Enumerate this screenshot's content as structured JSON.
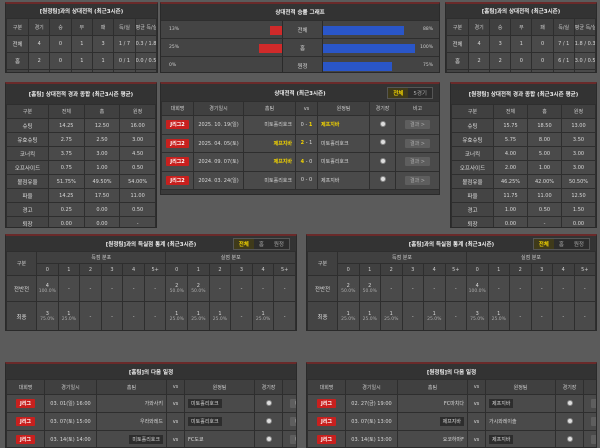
{
  "colors": {
    "accent": "#f1d300",
    "badge": "#c8201e",
    "lose_bar": "#d02a2a",
    "win_bar": "#2a56c8"
  },
  "h2h_away": {
    "title": "[원정팀]과의 상대전적 (최근3시즌)",
    "cols": [
      "구분",
      "경기",
      "승",
      "무",
      "패",
      "득/실",
      "평균 득/실"
    ],
    "rows": [
      [
        "전체",
        "4",
        "0",
        "1",
        "3",
        "1 / 7",
        "0.3 / 1.8"
      ],
      [
        "홈",
        "2",
        "0",
        "1",
        "1",
        "0 / 1",
        "0.0 / 0.5"
      ],
      [
        "원정",
        "2",
        "0",
        "0",
        "2",
        "1 / 6",
        "0.5 / 3.0"
      ]
    ]
  },
  "h2h_home": {
    "title": "[홈팀]과의 상대전적 (최근3시즌)",
    "cols": [
      "구분",
      "경기",
      "승",
      "무",
      "패",
      "득/실",
      "평균 득/실"
    ],
    "rows": [
      [
        "전체",
        "4",
        "3",
        "1",
        "0",
        "7 / 1",
        "1.8 / 0.3"
      ],
      [
        "홈",
        "2",
        "2",
        "0",
        "0",
        "6 / 1",
        "3.0 / 0.5"
      ],
      [
        "원정",
        "2",
        "1",
        "1",
        "0",
        "1 / 0",
        "0.5 / 0.0"
      ]
    ]
  },
  "graph": {
    "title": "상대전적 승률 그래프",
    "rows": [
      {
        "label": "전체",
        "left_pct": 13,
        "left_text": "13%",
        "right_pct": 88,
        "right_text": "88%"
      },
      {
        "label": "홈",
        "left_pct": 25,
        "left_text": "25%",
        "right_pct": 100,
        "right_text": "100%"
      },
      {
        "label": "원정",
        "left_pct": 0,
        "left_text": "0%",
        "right_pct": 75,
        "right_text": "75%"
      }
    ]
  },
  "stats_home": {
    "title": "[홈팀] 상대전적 경과 종합 (최근3시즌 평균)",
    "cols": [
      "구분",
      "전체",
      "홈",
      "원정"
    ],
    "rows": [
      [
        "슈팅",
        "14.25",
        "12.50",
        "16.00"
      ],
      [
        "유효슈팅",
        "2.75",
        "2.50",
        "3.00"
      ],
      [
        "코너킥",
        "3.75",
        "3.00",
        "4.50"
      ],
      [
        "오프사이드",
        "0.75",
        "1.00",
        "0.50"
      ],
      [
        "볼점유율",
        "51.75%",
        "49.50%",
        "54.00%"
      ],
      [
        "파울",
        "14.25",
        "17.50",
        "11.00"
      ],
      [
        "경고",
        "0.25",
        "0.00",
        "0.50"
      ],
      [
        "퇴장",
        "0.00",
        "0.00",
        "-"
      ]
    ]
  },
  "stats_away": {
    "title": "[원정팀] 상대전적 경과 종합 (최근3시즌 평균)",
    "cols": [
      "구분",
      "전체",
      "홈",
      "원정"
    ],
    "rows": [
      [
        "슈팅",
        "15.75",
        "18.50",
        "13.00"
      ],
      [
        "유효슈팅",
        "5.75",
        "8.00",
        "3.50"
      ],
      [
        "코너킥",
        "4.00",
        "5.00",
        "3.00"
      ],
      [
        "오프사이드",
        "2.00",
        "1.00",
        "3.00"
      ],
      [
        "볼점유율",
        "46.25%",
        "42.00%",
        "50.50%"
      ],
      [
        "파울",
        "11.75",
        "11.00",
        "12.50"
      ],
      [
        "경고",
        "1.00",
        "0.50",
        "1.50"
      ],
      [
        "퇴장",
        "0.00",
        "-",
        "0.00"
      ]
    ]
  },
  "h2h_matches": {
    "title": "상대전적 (최근3시즌)",
    "tabs": [
      "전체",
      "5경기"
    ],
    "cols": [
      "대회명",
      "경기일시",
      "홈팀",
      "vs",
      "원정팀",
      "경기장",
      "비고"
    ],
    "rows": [
      {
        "league": "J리그2",
        "date": "2025. 10. 19(일)",
        "home": "미토홀리호크",
        "hs": "0",
        "as": "1",
        "away": "제프지바",
        "win": "away",
        "btn": "결과 >"
      },
      {
        "league": "J리그2",
        "date": "2025. 04. 05(토)",
        "home": "제프지바",
        "hs": "2",
        "as": "1",
        "away": "미토홀리호크",
        "win": "home",
        "btn": "결과 >"
      },
      {
        "league": "J리그2",
        "date": "2024. 09. 07(토)",
        "home": "제프지바",
        "hs": "4",
        "as": "0",
        "away": "미토홀리호크",
        "win": "home",
        "btn": "결과 >"
      },
      {
        "league": "J리그2",
        "date": "2024. 03. 24(일)",
        "home": "미토홀리호크",
        "hs": "0",
        "as": "0",
        "away": "제프지바",
        "win": "none",
        "btn": "결과 >"
      }
    ]
  },
  "goals_away": {
    "title": "[원정팀]과의 득실점 통계 (최근3시즌)",
    "tabs": [
      "전체",
      "홈",
      "원정"
    ],
    "label_col": "구분",
    "group1": "득점 분포",
    "group2": "실점 분포",
    "buckets": [
      "0",
      "1",
      "2",
      "3",
      "4",
      "5+"
    ],
    "rows": [
      {
        "label": "전반전",
        "for": [
          [
            "4",
            "100.0%"
          ],
          null,
          null,
          null,
          null,
          null
        ],
        "against": [
          [
            "2",
            "50.0%"
          ],
          [
            "2",
            "50.0%"
          ],
          null,
          null,
          null,
          null
        ]
      },
      {
        "label": "최종",
        "for": [
          [
            "3",
            "75.0%"
          ],
          [
            "1",
            "25.0%"
          ],
          null,
          null,
          null,
          null
        ],
        "against": [
          [
            "1",
            "25.0%"
          ],
          [
            "1",
            "25.0%"
          ],
          [
            "1",
            "25.0%"
          ],
          null,
          [
            "1",
            "25.0%"
          ],
          null
        ]
      }
    ]
  },
  "goals_home": {
    "title": "[홈팀]과의 득실점 통계 (최근3시즌)",
    "tabs": [
      "전체",
      "홈",
      "원정"
    ],
    "label_col": "구분",
    "group1": "득점 분포",
    "group2": "실점 분포",
    "buckets": [
      "0",
      "1",
      "2",
      "3",
      "4",
      "5+"
    ],
    "rows": [
      {
        "label": "전반전",
        "for": [
          [
            "2",
            "50.0%"
          ],
          [
            "2",
            "50.0%"
          ],
          null,
          null,
          null,
          null
        ],
        "against": [
          [
            "4",
            "100.0%"
          ],
          null,
          null,
          null,
          null,
          null
        ]
      },
      {
        "label": "최종",
        "for": [
          [
            "1",
            "25.0%"
          ],
          [
            "1",
            "25.0%"
          ],
          [
            "1",
            "25.0%"
          ],
          null,
          [
            "1",
            "25.0%"
          ],
          null
        ],
        "against": [
          [
            "3",
            "75.0%"
          ],
          [
            "1",
            "25.0%"
          ],
          null,
          null,
          null,
          null
        ]
      }
    ]
  },
  "next_home": {
    "title": "[홈팀]의 다음 일정",
    "cols": [
      "대회명",
      "경기일시",
      "홈팀",
      "vs",
      "원정팀",
      "경기장",
      "비고"
    ],
    "rows": [
      {
        "league": "J리그",
        "date": "03. 01(일) 16:00",
        "home": "가와사키",
        "away": "미토홀리호크",
        "team": "away",
        "btn": "비교 >"
      },
      {
        "league": "J리그",
        "date": "03. 07(토) 15:00",
        "home": "우라와레드",
        "away": "미토홀리호크",
        "team": "away",
        "btn": "비교 >"
      },
      {
        "league": "J리그",
        "date": "03. 14(토) 14:00",
        "home": "미토홀리호크",
        "away": "FC도쿄",
        "team": "home",
        "btn": "비교 >"
      }
    ]
  },
  "next_away": {
    "title": "[원정팀]의 다음 일정",
    "cols": [
      "대회명",
      "경기일시",
      "홈팀",
      "vs",
      "원정팀",
      "경기장",
      "비고"
    ],
    "rows": [
      {
        "league": "J리그",
        "date": "02. 27(금) 19:00",
        "home": "FC마치다",
        "away": "제프지바",
        "team": "away",
        "btn": "비교 >"
      },
      {
        "league": "J리그",
        "date": "03. 07(토) 13:00",
        "home": "제프지바",
        "away": "가시와레이솔",
        "team": "home",
        "btn": "비교 >"
      },
      {
        "league": "J리그",
        "date": "03. 14(토) 13:00",
        "home": "요코하마F",
        "away": "제프지바",
        "team": "away",
        "btn": "비교 >"
      }
    ]
  },
  "dash": "-",
  "vs": "vs"
}
